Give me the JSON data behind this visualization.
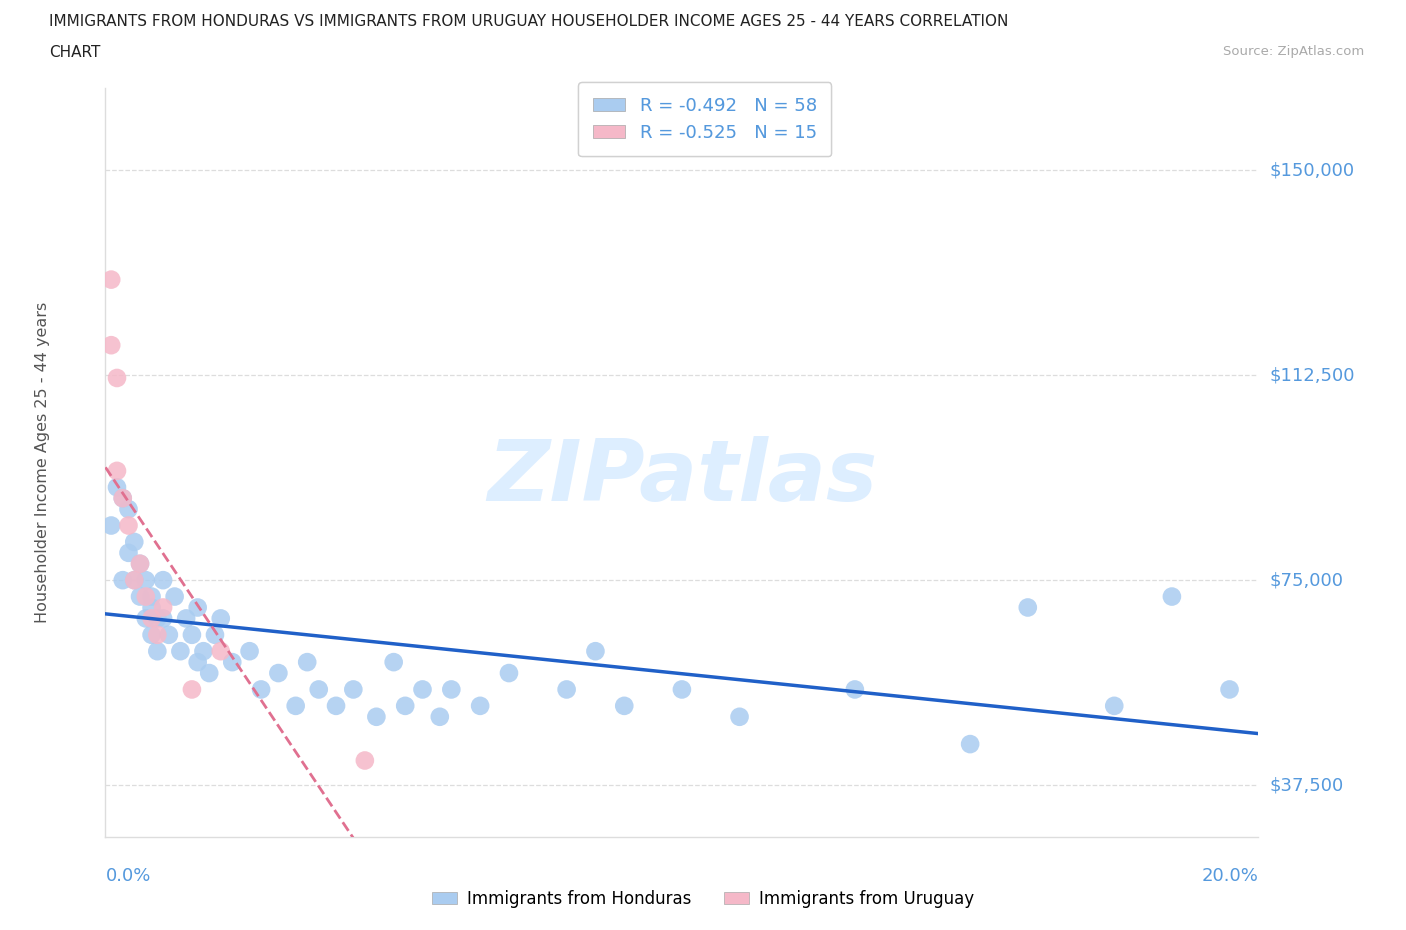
{
  "title_line1": "IMMIGRANTS FROM HONDURAS VS IMMIGRANTS FROM URUGUAY HOUSEHOLDER INCOME AGES 25 - 44 YEARS CORRELATION",
  "title_line2": "CHART",
  "source": "Source: ZipAtlas.com",
  "ylabel": "Householder Income Ages 25 - 44 years",
  "yticks": [
    37500,
    75000,
    112500,
    150000
  ],
  "ytick_labels": [
    "$37,500",
    "$75,000",
    "$112,500",
    "$150,000"
  ],
  "xlim": [
    0.0,
    0.2
  ],
  "ylim": [
    28000,
    165000
  ],
  "legend_honduras": "R = -0.492   N = 58",
  "legend_uruguay": "R = -0.525   N = 15",
  "color_honduras": "#aaccf0",
  "color_uruguay": "#f5b8c8",
  "trendline_honduras_color": "#2060c8",
  "trendline_uruguay_color": "#e07090",
  "trendline_uruguay_style": "--",
  "watermark": "ZIPatlas",
  "watermark_color": "#ddeeff",
  "title_color": "#222222",
  "source_color": "#aaaaaa",
  "ylabel_color": "#555555",
  "ytick_color": "#5599dd",
  "xtick_color": "#5599dd",
  "grid_color": "#dddddd",
  "honduras_x": [
    0.001,
    0.002,
    0.003,
    0.003,
    0.004,
    0.004,
    0.005,
    0.005,
    0.006,
    0.006,
    0.007,
    0.007,
    0.008,
    0.008,
    0.008,
    0.009,
    0.009,
    0.01,
    0.01,
    0.011,
    0.012,
    0.013,
    0.014,
    0.015,
    0.016,
    0.016,
    0.017,
    0.018,
    0.019,
    0.02,
    0.022,
    0.025,
    0.027,
    0.03,
    0.033,
    0.035,
    0.037,
    0.04,
    0.043,
    0.047,
    0.05,
    0.052,
    0.055,
    0.058,
    0.06,
    0.065,
    0.07,
    0.08,
    0.085,
    0.09,
    0.1,
    0.11,
    0.13,
    0.15,
    0.16,
    0.175,
    0.185,
    0.195
  ],
  "honduras_y": [
    85000,
    92000,
    75000,
    90000,
    80000,
    88000,
    75000,
    82000,
    72000,
    78000,
    68000,
    75000,
    70000,
    65000,
    72000,
    68000,
    62000,
    75000,
    68000,
    65000,
    72000,
    62000,
    68000,
    65000,
    60000,
    70000,
    62000,
    58000,
    65000,
    68000,
    60000,
    62000,
    55000,
    58000,
    52000,
    60000,
    55000,
    52000,
    55000,
    50000,
    60000,
    52000,
    55000,
    50000,
    55000,
    52000,
    58000,
    55000,
    62000,
    52000,
    55000,
    50000,
    55000,
    45000,
    70000,
    52000,
    72000,
    55000
  ],
  "uruguay_x": [
    0.001,
    0.001,
    0.002,
    0.002,
    0.003,
    0.004,
    0.005,
    0.006,
    0.007,
    0.008,
    0.009,
    0.01,
    0.015,
    0.02,
    0.045
  ],
  "uruguay_y": [
    130000,
    118000,
    112000,
    95000,
    90000,
    85000,
    75000,
    78000,
    72000,
    68000,
    65000,
    70000,
    55000,
    62000,
    42000
  ]
}
